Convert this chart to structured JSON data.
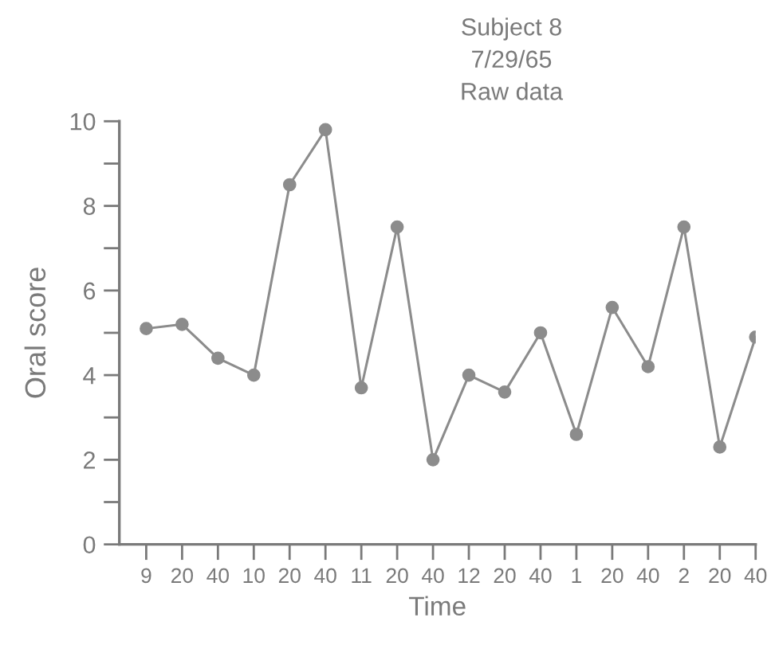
{
  "chart_data": {
    "type": "line",
    "title": "Subject 8",
    "subtitle": "7/29/65",
    "annotations": [
      "Raw data"
    ],
    "xlabel": "Time",
    "ylabel": "Oral score",
    "categories": [
      "9",
      "20",
      "40",
      "10",
      "20",
      "40",
      "11",
      "20",
      "40",
      "12",
      "20",
      "40",
      "1",
      "20",
      "40",
      "2",
      "20",
      "40"
    ],
    "series": [
      {
        "color": "#8c8c8c",
        "values": [
          5.1,
          5.2,
          4.4,
          4.0,
          8.5,
          9.8,
          3.7,
          7.5,
          2.0,
          4.0,
          3.6,
          5.0,
          2.6,
          5.6,
          4.2,
          7.5,
          2.3,
          4.9
        ]
      }
    ],
    "ylim": [
      0,
      10
    ],
    "yticks": [
      0,
      {
        "value": 1,
        "label": null
      },
      2,
      {
        "value": 3,
        "label": null
      },
      4,
      {
        "value": 5,
        "label": null
      },
      6,
      {
        "value": 7,
        "label": null
      },
      8,
      {
        "value": 9,
        "label": null
      },
      10
    ],
    "grid": false,
    "legend": false,
    "marker": "circle",
    "line_style": "solid"
  }
}
